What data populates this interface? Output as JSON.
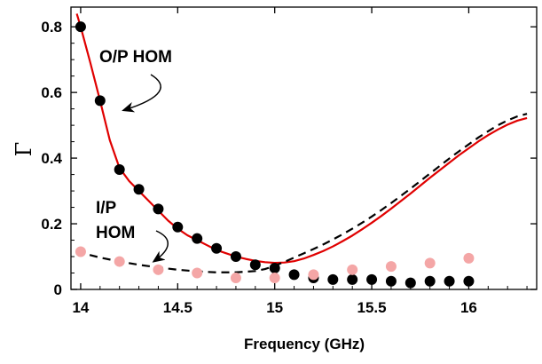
{
  "chart_data": {
    "type": "scatter",
    "xlabel": "Frequency (GHz)",
    "ylabel": "Γ",
    "xlim": [
      13.95,
      16.35
    ],
    "ylim": [
      0,
      0.86
    ],
    "xticks": [
      {
        "value": 14,
        "label": "14"
      },
      {
        "value": 14.5,
        "label": "14.5"
      },
      {
        "value": 15,
        "label": "15"
      },
      {
        "value": 15.5,
        "label": "15.5"
      },
      {
        "value": 16,
        "label": "16"
      }
    ],
    "yticks": [
      {
        "value": 0,
        "label": "0"
      },
      {
        "value": 0.2,
        "label": "0.2"
      },
      {
        "value": 0.4,
        "label": "0.4"
      },
      {
        "value": 0.6,
        "label": "0.6"
      },
      {
        "value": 0.8,
        "label": "0.8"
      }
    ],
    "annotations": [
      {
        "id": "op",
        "text": "O/P HOM"
      },
      {
        "id": "ip1",
        "text": "I/P"
      },
      {
        "id": "ip2",
        "text": "HOM"
      }
    ],
    "series": [
      {
        "kind": "line",
        "style": "solid",
        "color": "#e00000",
        "x": [
          13.98,
          14.0,
          14.05,
          14.1,
          14.15,
          14.2,
          14.25,
          14.3,
          14.35,
          14.4,
          14.45,
          14.5,
          14.55,
          14.6,
          14.65,
          14.7,
          14.75,
          14.8,
          14.85,
          14.9,
          14.95,
          15.0,
          15.05,
          15.1,
          15.15,
          15.2,
          15.25,
          15.3,
          15.35,
          15.4,
          15.45,
          15.5,
          15.55,
          15.6,
          15.65,
          15.7,
          15.75,
          15.8,
          15.85,
          15.9,
          15.95,
          16.0,
          16.05,
          16.1,
          16.15,
          16.2,
          16.25,
          16.3
        ],
        "y": [
          0.84,
          0.8,
          0.69,
          0.575,
          0.455,
          0.37,
          0.33,
          0.3,
          0.27,
          0.24,
          0.21,
          0.185,
          0.165,
          0.15,
          0.135,
          0.12,
          0.11,
          0.1,
          0.093,
          0.087,
          0.083,
          0.081,
          0.082,
          0.086,
          0.094,
          0.105,
          0.117,
          0.131,
          0.147,
          0.164,
          0.183,
          0.203,
          0.224,
          0.246,
          0.269,
          0.292,
          0.316,
          0.34,
          0.363,
          0.386,
          0.409,
          0.43,
          0.451,
          0.47,
          0.487,
          0.502,
          0.514,
          0.522
        ]
      },
      {
        "kind": "line",
        "style": "dashed",
        "color": "#000000",
        "x": [
          13.98,
          14.1,
          14.2,
          14.3,
          14.4,
          14.5,
          14.6,
          14.7,
          14.8,
          14.9,
          14.95,
          15.0,
          15.05,
          15.1,
          15.15,
          15.2,
          15.25,
          15.3,
          15.35,
          15.4,
          15.45,
          15.5,
          15.55,
          15.6,
          15.65,
          15.7,
          15.75,
          15.8,
          15.85,
          15.9,
          15.95,
          16.0,
          16.05,
          16.1,
          16.15,
          16.2,
          16.25,
          16.3
        ],
        "y": [
          0.115,
          0.097,
          0.085,
          0.075,
          0.067,
          0.06,
          0.055,
          0.052,
          0.052,
          0.056,
          0.062,
          0.072,
          0.084,
          0.097,
          0.11,
          0.123,
          0.137,
          0.152,
          0.168,
          0.185,
          0.203,
          0.222,
          0.242,
          0.263,
          0.285,
          0.307,
          0.33,
          0.353,
          0.376,
          0.399,
          0.421,
          0.442,
          0.463,
          0.482,
          0.5,
          0.515,
          0.527,
          0.535
        ]
      },
      {
        "kind": "scatter",
        "color": "#000000",
        "x": [
          14.0,
          14.1,
          14.2,
          14.3,
          14.4,
          14.5,
          14.6,
          14.7,
          14.8,
          14.9,
          15.0,
          15.1,
          15.2,
          15.3,
          15.4,
          15.5,
          15.6,
          15.7,
          15.8,
          15.9,
          16.0
        ],
        "y": [
          0.8,
          0.575,
          0.365,
          0.305,
          0.245,
          0.19,
          0.155,
          0.125,
          0.1,
          0.075,
          0.065,
          0.045,
          0.035,
          0.03,
          0.03,
          0.03,
          0.025,
          0.02,
          0.025,
          0.025,
          0.025
        ]
      },
      {
        "kind": "scatter",
        "color": "#f4a6a6",
        "x": [
          14.0,
          14.2,
          14.4,
          14.6,
          14.8,
          15.0,
          15.2,
          15.4,
          15.6,
          15.8,
          16.0
        ],
        "y": [
          0.115,
          0.085,
          0.06,
          0.05,
          0.035,
          0.035,
          0.045,
          0.06,
          0.07,
          0.08,
          0.095
        ]
      }
    ]
  }
}
